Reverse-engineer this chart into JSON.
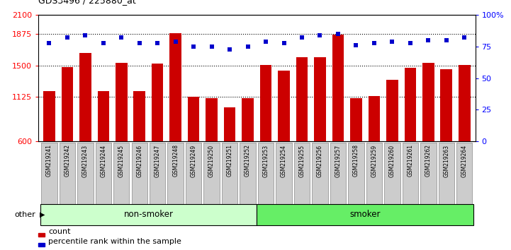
{
  "title": "GDS3496 / 225880_at",
  "samples": [
    "GSM219241",
    "GSM219242",
    "GSM219243",
    "GSM219244",
    "GSM219245",
    "GSM219246",
    "GSM219247",
    "GSM219248",
    "GSM219249",
    "GSM219250",
    "GSM219251",
    "GSM219252",
    "GSM219253",
    "GSM219254",
    "GSM219255",
    "GSM219256",
    "GSM219257",
    "GSM219258",
    "GSM219259",
    "GSM219260",
    "GSM219261",
    "GSM219262",
    "GSM219263",
    "GSM219264"
  ],
  "counts": [
    1200,
    1480,
    1650,
    1200,
    1530,
    1200,
    1520,
    1880,
    1130,
    1110,
    1000,
    1110,
    1510,
    1440,
    1600,
    1600,
    1870,
    1110,
    1140,
    1330,
    1470,
    1530,
    1460,
    1510
  ],
  "percentiles": [
    78,
    82,
    84,
    78,
    82,
    78,
    78,
    79,
    75,
    75,
    73,
    75,
    79,
    78,
    82,
    84,
    85,
    76,
    78,
    79,
    78,
    80,
    80,
    82
  ],
  "groups": [
    "non-smoker",
    "non-smoker",
    "non-smoker",
    "non-smoker",
    "non-smoker",
    "non-smoker",
    "non-smoker",
    "non-smoker",
    "non-smoker",
    "non-smoker",
    "non-smoker",
    "non-smoker",
    "smoker",
    "smoker",
    "smoker",
    "smoker",
    "smoker",
    "smoker",
    "smoker",
    "smoker",
    "smoker",
    "smoker",
    "smoker",
    "smoker"
  ],
  "bar_color": "#cc0000",
  "dot_color": "#0000cc",
  "nonsmoker_color": "#ccffcc",
  "smoker_color": "#66ee66",
  "label_bg_color": "#cccccc",
  "ylim_left": [
    600,
    2100
  ],
  "ylim_right": [
    0,
    100
  ],
  "yticks_left": [
    600,
    1125,
    1500,
    1875,
    2100
  ],
  "yticks_right": [
    0,
    25,
    50,
    75,
    100
  ],
  "grid_values": [
    1125,
    1500,
    1875
  ],
  "other_label": "other"
}
